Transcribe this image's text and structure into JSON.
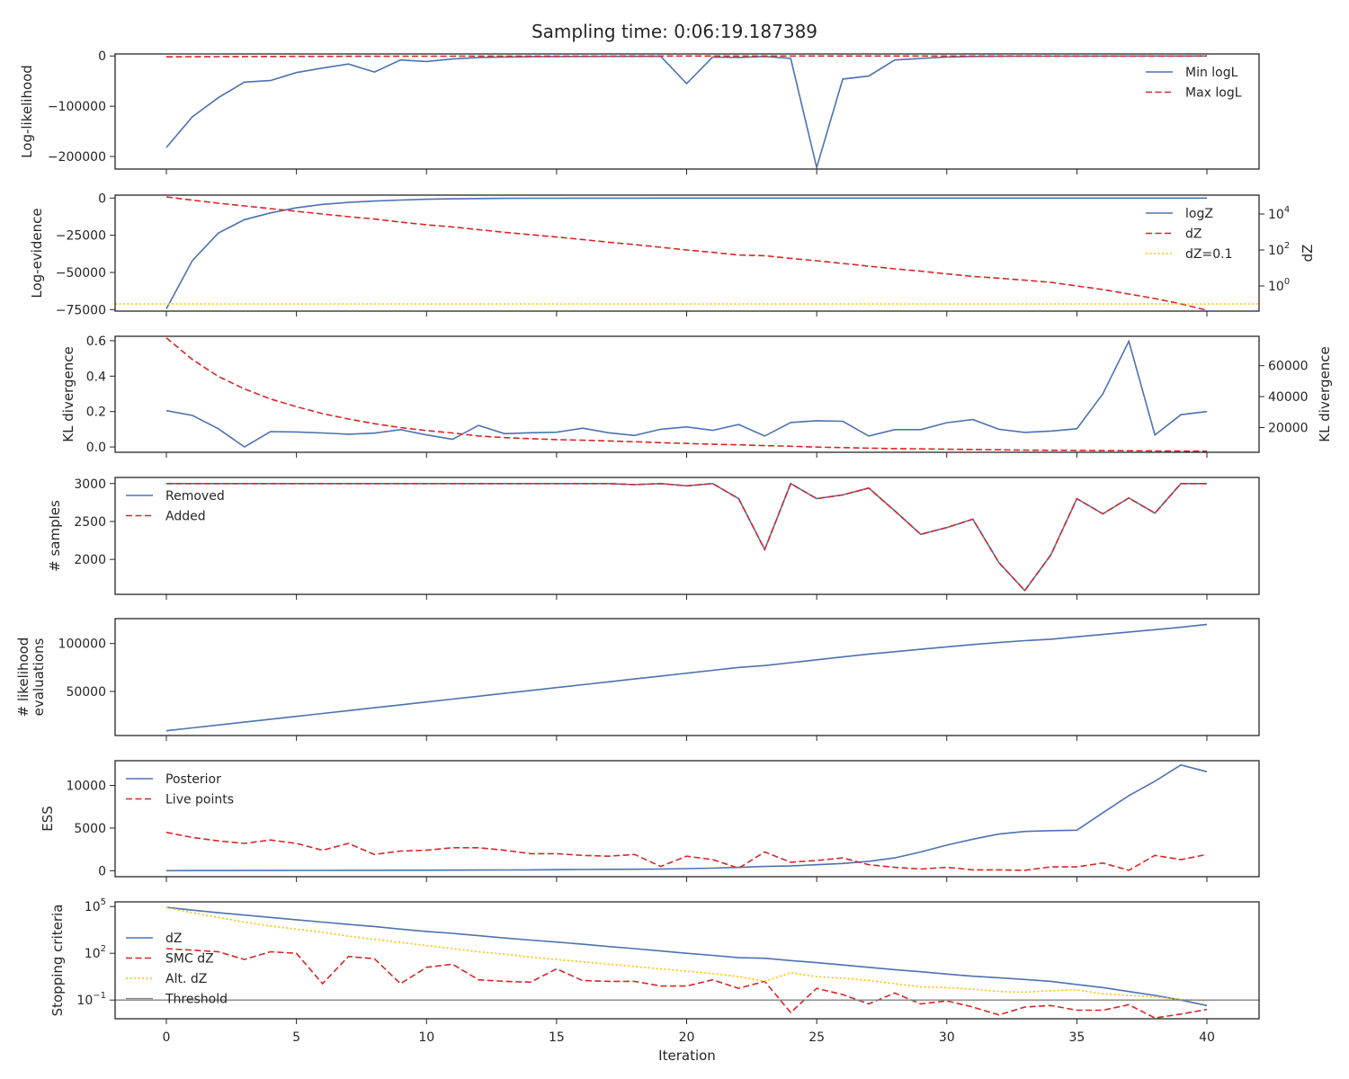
{
  "title": "Sampling time: 0:06:19.187389",
  "xlabel": "Iteration",
  "colors": {
    "blue": "#4c72b0",
    "red": "#d62728",
    "yellow": "#ffbf00",
    "gray": "#808080"
  },
  "chart_data": [
    {
      "type": "line",
      "ylabel": "Log-likelihood",
      "ylim": [
        -225000,
        4000
      ],
      "yticks": [
        0,
        -100000,
        -200000
      ],
      "ytick_labels": [
        "0",
        "−100000",
        "−200000"
      ],
      "legend_loc": "upper-right",
      "series": [
        {
          "name": "Min logL",
          "style": "solid",
          "color": "#4c72b0",
          "values": [
            -182000,
            -121000,
            -83000,
            -52000,
            -49000,
            -33000,
            -24000,
            -16000,
            -32000,
            -8000,
            -11000,
            -6000,
            -3000,
            -2000,
            -1500,
            -1200,
            -1000,
            -900,
            -800,
            -700,
            -55000,
            -2000,
            -3000,
            -1000,
            -5000,
            -222000,
            -46000,
            -40000,
            -8000,
            -5000,
            -2000,
            -1000,
            -700,
            -500,
            -400,
            -300,
            -250,
            -200,
            -150,
            -100,
            -80
          ]
        },
        {
          "name": "Max logL",
          "style": "dashed",
          "color": "#d62728",
          "values": [
            -1800,
            -1600,
            -1400,
            -1200,
            -1000,
            -900,
            -800,
            -700,
            -600,
            -500,
            -450,
            -400,
            -350,
            -300,
            -280,
            -260,
            -240,
            -220,
            -200,
            -180,
            -160,
            -150,
            -140,
            -130,
            -120,
            -110,
            -100,
            -90,
            -85,
            -80,
            -75,
            -70,
            -65,
            -60,
            -55,
            -50,
            -45,
            -40,
            -35,
            -30,
            -25
          ]
        }
      ]
    },
    {
      "type": "line",
      "ylabel": "Log-evidence",
      "ylabel_right": "dZ",
      "ylim": [
        -76000,
        2000
      ],
      "yticks": [
        0,
        -25000,
        -50000,
        -75000
      ],
      "ytick_labels": [
        "0",
        "−25000",
        "−50000",
        "−75000"
      ],
      "y2_log_range": [
        -1.4,
        5.05
      ],
      "y2ticks": [
        0,
        2,
        4
      ],
      "legend_loc": "upper-right",
      "series": [
        {
          "name": "logZ",
          "style": "solid",
          "color": "#4c72b0",
          "axis": "left",
          "values": [
            -74500,
            -42000,
            -23500,
            -14500,
            -10000,
            -6500,
            -4200,
            -2900,
            -2000,
            -1300,
            -800,
            -500,
            -300,
            -200,
            -130,
            -90,
            -60,
            -40,
            -30,
            -20,
            -15,
            -12,
            -10,
            -8,
            -6,
            -5,
            -4,
            -3,
            -2.5,
            -2,
            -1.5,
            -1.2,
            -1,
            -0.8,
            -0.6,
            -0.5,
            -0.4,
            -0.3,
            -0.2,
            -0.15,
            -0.1
          ]
        },
        {
          "name": "dZ",
          "style": "dashed",
          "color": "#d62728",
          "axis": "right",
          "log": true,
          "values": [
            4.95,
            4.77,
            4.6,
            4.45,
            4.3,
            4.15,
            4.0,
            3.85,
            3.72,
            3.55,
            3.4,
            3.28,
            3.13,
            2.98,
            2.85,
            2.72,
            2.58,
            2.43,
            2.3,
            2.15,
            2.0,
            1.87,
            1.72,
            1.68,
            1.53,
            1.4,
            1.25,
            1.1,
            0.95,
            0.82,
            0.67,
            0.53,
            0.43,
            0.32,
            0.2,
            0.0,
            -0.2,
            -0.45,
            -0.7,
            -1.0,
            -1.35
          ]
        },
        {
          "name": "dZ=0.1",
          "style": "dotted",
          "color": "#ffbf00",
          "axis": "right",
          "log": true,
          "const": -1
        }
      ]
    },
    {
      "type": "line",
      "ylabel": "KL divergence",
      "ylabel_right": "KL divergence",
      "ylim": [
        -0.03,
        0.625
      ],
      "yticks": [
        0.0,
        0.2,
        0.4,
        0.6
      ],
      "ytick_labels": [
        "0.0",
        "0.2",
        "0.4",
        "0.6"
      ],
      "y2lim": [
        4000,
        79000
      ],
      "y2ticks": [
        20000,
        40000,
        60000
      ],
      "series": [
        {
          "name": "KL divergence",
          "style": "solid",
          "color": "#4c72b0",
          "axis": "left",
          "values": [
            0.205,
            0.178,
            0.103,
            0.0,
            0.087,
            0.085,
            0.079,
            0.072,
            0.078,
            0.098,
            0.068,
            0.043,
            0.122,
            0.075,
            0.08,
            0.083,
            0.106,
            0.08,
            0.065,
            0.1,
            0.113,
            0.094,
            0.127,
            0.062,
            0.138,
            0.148,
            0.145,
            0.062,
            0.098,
            0.098,
            0.137,
            0.155,
            0.1,
            0.082,
            0.09,
            0.103,
            0.3,
            0.597,
            0.068,
            0.182,
            0.2
          ]
        },
        {
          "name": "KL divergence",
          "style": "dashed",
          "color": "#d62728",
          "axis": "right",
          "values": [
            78000,
            64000,
            53000,
            45000,
            38500,
            33500,
            29000,
            25500,
            22500,
            20000,
            18000,
            16500,
            14500,
            13500,
            12800,
            12200,
            11800,
            11300,
            10800,
            10200,
            9700,
            9200,
            8800,
            8300,
            7900,
            7400,
            7000,
            6700,
            6400,
            6200,
            6000,
            5800,
            5600,
            5400,
            5300,
            5200,
            5100,
            5000,
            4900,
            4800,
            4700
          ]
        }
      ]
    },
    {
      "type": "line",
      "ylabel": "# samples",
      "ylim": [
        1540,
        3080
      ],
      "yticks": [
        2000,
        2500,
        3000
      ],
      "ytick_labels": [
        "2000",
        "2500",
        "3000"
      ],
      "legend_loc": "upper-left",
      "series": [
        {
          "name": "Removed",
          "style": "solid",
          "color": "#4c72b0",
          "values": [
            3000,
            3000,
            3000,
            3000,
            3000,
            3000,
            3000,
            3000,
            3000,
            3000,
            3000,
            3000,
            3000,
            3000,
            3000,
            3000,
            3000,
            3000,
            2985,
            3000,
            2970,
            3000,
            2800,
            2130,
            3000,
            2800,
            2850,
            2940,
            2640,
            2330,
            2420,
            2530,
            1960,
            1590,
            2060,
            2800,
            2600,
            2810,
            2610,
            3000,
            3000
          ]
        },
        {
          "name": "Added",
          "style": "dashed",
          "color": "#d62728",
          "values": [
            3000,
            3000,
            3000,
            3000,
            3000,
            3000,
            3000,
            3000,
            3000,
            3000,
            3000,
            3000,
            3000,
            3000,
            3000,
            3000,
            3000,
            3000,
            2985,
            3000,
            2970,
            3000,
            2800,
            2130,
            3000,
            2800,
            2850,
            2940,
            2640,
            2330,
            2420,
            2530,
            1960,
            1590,
            2060,
            2800,
            2600,
            2810,
            2610,
            3000,
            3000
          ]
        }
      ]
    },
    {
      "type": "line",
      "ylabel": "# likelihood",
      "ylabel2": "evaluations",
      "ylim": [
        4000,
        126000
      ],
      "yticks": [
        50000,
        100000
      ],
      "ytick_labels": [
        "50000",
        "100000"
      ],
      "series": [
        {
          "name": "# likelihood evaluations",
          "style": "solid",
          "color": "#4c72b0",
          "values": [
            9000,
            12000,
            15000,
            18000,
            21000,
            24000,
            27000,
            30000,
            33000,
            36000,
            39000,
            42000,
            45000,
            48000,
            51000,
            54000,
            57000,
            60000,
            63000,
            66000,
            69000,
            72000,
            75000,
            77000,
            80000,
            83000,
            86000,
            89000,
            91500,
            94000,
            96500,
            99000,
            101000,
            103000,
            104500,
            107000,
            109500,
            112000,
            114500,
            117000,
            120000
          ]
        }
      ]
    },
    {
      "type": "line",
      "ylabel": "ESS",
      "ylim": [
        -700,
        12900
      ],
      "yticks": [
        0,
        5000,
        10000
      ],
      "ytick_labels": [
        "0",
        "5000",
        "10000"
      ],
      "legend_loc": "upper-left",
      "series": [
        {
          "name": "Posterior",
          "style": "solid",
          "color": "#4c72b0",
          "values": [
            10,
            15,
            20,
            25,
            30,
            35,
            40,
            45,
            50,
            55,
            60,
            70,
            80,
            90,
            100,
            120,
            140,
            160,
            180,
            200,
            250,
            300,
            400,
            500,
            550,
            700,
            850,
            1100,
            1500,
            2200,
            3000,
            3700,
            4300,
            4600,
            4700,
            4750,
            6800,
            8800,
            10500,
            12400,
            11600
          ]
        },
        {
          "name": "Live points",
          "style": "dashed",
          "color": "#d62728",
          "values": [
            4500,
            3900,
            3500,
            3200,
            3600,
            3200,
            2400,
            3200,
            1900,
            2300,
            2400,
            2700,
            2700,
            2400,
            2000,
            2000,
            1800,
            1700,
            1900,
            500,
            1700,
            1300,
            300,
            2200,
            1000,
            1200,
            1500,
            700,
            400,
            200,
            400,
            100,
            100,
            50,
            450,
            450,
            900,
            50,
            1800,
            1300,
            1900
          ]
        }
      ]
    },
    {
      "type": "line",
      "ylabel": "Stopping criteria",
      "log_range": [
        -2.2,
        5.3
      ],
      "yticks": [
        -1,
        2,
        5
      ],
      "legend_loc": "center-left",
      "series": [
        {
          "name": "dZ",
          "style": "solid",
          "color": "#4c72b0",
          "log": true,
          "values": [
            4.95,
            4.77,
            4.6,
            4.45,
            4.3,
            4.15,
            4.0,
            3.85,
            3.72,
            3.55,
            3.4,
            3.28,
            3.13,
            2.98,
            2.85,
            2.72,
            2.58,
            2.43,
            2.3,
            2.15,
            2.0,
            1.87,
            1.72,
            1.68,
            1.53,
            1.4,
            1.25,
            1.1,
            0.95,
            0.82,
            0.67,
            0.53,
            0.43,
            0.32,
            0.2,
            0.0,
            -0.2,
            -0.45,
            -0.7,
            -1.0,
            -1.35
          ]
        },
        {
          "name": "SMC dZ",
          "style": "dashed",
          "color": "#d62728",
          "log": true,
          "values": [
            2.3,
            2.2,
            2.1,
            1.6,
            2.1,
            2.0,
            0.05,
            1.8,
            1.65,
            0.05,
            1.1,
            1.3,
            0.3,
            0.2,
            0.15,
            1.0,
            0.25,
            0.2,
            0.2,
            -0.1,
            -0.1,
            0.3,
            -0.25,
            0.2,
            -1.8,
            -0.25,
            -0.65,
            -1.25,
            -0.55,
            -1.25,
            -1.05,
            -1.45,
            -1.95,
            -1.45,
            -1.35,
            -1.65,
            -1.65,
            -1.3,
            -2.15,
            -1.9,
            -1.6
          ]
        },
        {
          "name": "Alt. dZ",
          "style": "dotted",
          "color": "#ffbf00",
          "log": true,
          "values": [
            4.95,
            4.6,
            4.3,
            4.0,
            3.75,
            3.55,
            3.35,
            3.1,
            2.9,
            2.7,
            2.5,
            2.3,
            2.1,
            1.95,
            1.75,
            1.6,
            1.45,
            1.3,
            1.15,
            1.0,
            0.85,
            0.7,
            0.5,
            0.2,
            0.75,
            0.5,
            0.4,
            0.25,
            0.05,
            -0.15,
            -0.2,
            -0.3,
            -0.45,
            -0.5,
            -0.4,
            -0.35,
            -0.6,
            -0.7,
            -0.8,
            -0.95,
            -1.05
          ]
        },
        {
          "name": "Threshold",
          "style": "solid",
          "color": "#808080",
          "log": true,
          "const": -1
        }
      ]
    }
  ]
}
